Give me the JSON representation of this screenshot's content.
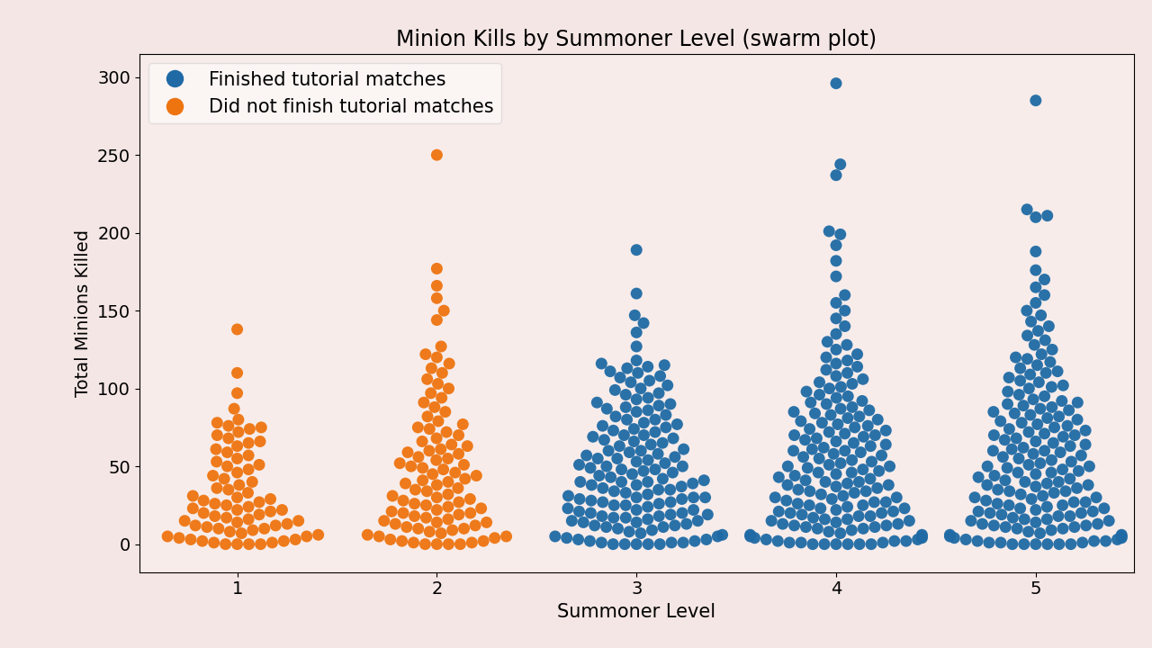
{
  "chart_data": {
    "type": "swarm",
    "title": "Minion Kills by Summoner Level (swarm plot)",
    "x_label": "Summoner Level",
    "y_label": "Total Minions Killed",
    "categories": [
      "1",
      "2",
      "3",
      "4",
      "5"
    ],
    "ylim": [
      -18,
      315
    ],
    "yticks": [
      0,
      50,
      100,
      150,
      200,
      250,
      300
    ],
    "legend": "upper left",
    "series": [
      {
        "name": "Finished tutorial matches",
        "color": "#1f6aa5",
        "values": [
          null,
          null,
          [
            0,
            0,
            0,
            0,
            0,
            1,
            1,
            1,
            2,
            2,
            3,
            3,
            4,
            5,
            5,
            6,
            7,
            8,
            9,
            10,
            11,
            11,
            12,
            12,
            13,
            14,
            14,
            15,
            15,
            16,
            17,
            17,
            18,
            18,
            19,
            19,
            20,
            20,
            21,
            22,
            22,
            23,
            24,
            25,
            25,
            26,
            27,
            27,
            28,
            29,
            29,
            30,
            30,
            30,
            31,
            32,
            33,
            34,
            35,
            35,
            36,
            37,
            38,
            38,
            39,
            40,
            40,
            40,
            41,
            42,
            43,
            44,
            45,
            46,
            47,
            48,
            48,
            49,
            50,
            50,
            51,
            52,
            53,
            54,
            55,
            55,
            56,
            57,
            58,
            59,
            60,
            60,
            61,
            63,
            64,
            65,
            66,
            67,
            68,
            69,
            70,
            70,
            72,
            73,
            74,
            75,
            76,
            77,
            78,
            80,
            80,
            82,
            83,
            85,
            86,
            87,
            88,
            89,
            90,
            91,
            93,
            94,
            96,
            97,
            99,
            100,
            102,
            104,
            105,
            107,
            108,
            110,
            111,
            113,
            114,
            115,
            116,
            118,
            127,
            136,
            142,
            147,
            161,
            189
          ],
          [
            0,
            0,
            0,
            0,
            0,
            0,
            1,
            1,
            1,
            2,
            2,
            2,
            3,
            3,
            4,
            4,
            5,
            5,
            6,
            6,
            7,
            8,
            9,
            10,
            10,
            11,
            11,
            12,
            12,
            13,
            13,
            14,
            15,
            15,
            16,
            16,
            17,
            18,
            18,
            19,
            20,
            20,
            21,
            21,
            22,
            23,
            23,
            24,
            25,
            25,
            26,
            27,
            27,
            28,
            29,
            30,
            30,
            31,
            32,
            33,
            34,
            34,
            35,
            36,
            37,
            38,
            38,
            39,
            40,
            40,
            41,
            42,
            43,
            44,
            45,
            46,
            46,
            47,
            48,
            49,
            50,
            50,
            51,
            52,
            53,
            54,
            55,
            56,
            57,
            58,
            59,
            60,
            60,
            61,
            62,
            63,
            64,
            65,
            66,
            67,
            68,
            69,
            70,
            70,
            71,
            72,
            73,
            74,
            75,
            76,
            77,
            78,
            79,
            80,
            81,
            82,
            83,
            84,
            85,
            86,
            87,
            88,
            90,
            91,
            92,
            94,
            95,
            96,
            98,
            100,
            101,
            103,
            104,
            106,
            108,
            110,
            112,
            114,
            116,
            118,
            120,
            122,
            125,
            128,
            130,
            135,
            140,
            145,
            150,
            155,
            160,
            172,
            182,
            192,
            199,
            201,
            237,
            244,
            296
          ],
          [
            0,
            0,
            0,
            0,
            0,
            0,
            1,
            1,
            1,
            2,
            2,
            2,
            3,
            3,
            4,
            4,
            5,
            5,
            6,
            6,
            7,
            8,
            9,
            10,
            10,
            11,
            11,
            12,
            12,
            13,
            13,
            14,
            15,
            15,
            16,
            16,
            17,
            18,
            18,
            19,
            20,
            20,
            21,
            21,
            22,
            23,
            23,
            24,
            25,
            25,
            26,
            27,
            27,
            28,
            29,
            30,
            30,
            31,
            32,
            33,
            34,
            34,
            35,
            36,
            37,
            38,
            38,
            39,
            40,
            40,
            41,
            42,
            43,
            44,
            45,
            46,
            46,
            47,
            48,
            49,
            50,
            50,
            51,
            52,
            53,
            54,
            55,
            56,
            57,
            58,
            59,
            60,
            60,
            61,
            62,
            63,
            64,
            65,
            66,
            67,
            68,
            69,
            70,
            70,
            71,
            72,
            73,
            74,
            75,
            76,
            77,
            78,
            79,
            80,
            81,
            82,
            83,
            84,
            85,
            86,
            87,
            88,
            89,
            90,
            91,
            92,
            93,
            95,
            96,
            98,
            100,
            101,
            102,
            104,
            105,
            107,
            109,
            110,
            111,
            113,
            115,
            117,
            119,
            120,
            122,
            125,
            128,
            131,
            134,
            137,
            140,
            143,
            147,
            150,
            155,
            160,
            165,
            170,
            176,
            188,
            210,
            211,
            215,
            285
          ]
        ]
      },
      {
        "name": "Did not finish tutorial matches",
        "color": "#ee7410",
        "values": [
          [
            0,
            0,
            0,
            0,
            1,
            1,
            2,
            2,
            3,
            3,
            4,
            5,
            5,
            6,
            7,
            8,
            9,
            10,
            10,
            11,
            12,
            12,
            13,
            14,
            15,
            15,
            16,
            17,
            18,
            19,
            20,
            21,
            22,
            22,
            23,
            24,
            25,
            26,
            27,
            28,
            29,
            30,
            31,
            33,
            35,
            36,
            38,
            40,
            42,
            44,
            46,
            48,
            50,
            51,
            53,
            55,
            57,
            59,
            61,
            63,
            65,
            66,
            68,
            70,
            72,
            74,
            75,
            76,
            78,
            80,
            87,
            97,
            110,
            138
          ],
          [
            0,
            0,
            0,
            0,
            1,
            1,
            2,
            2,
            3,
            4,
            5,
            5,
            6,
            7,
            8,
            9,
            10,
            10,
            11,
            12,
            13,
            14,
            14,
            15,
            16,
            17,
            18,
            19,
            20,
            20,
            21,
            22,
            23,
            24,
            25,
            26,
            27,
            28,
            29,
            30,
            31,
            32,
            34,
            35,
            36,
            38,
            39,
            40,
            41,
            42,
            44,
            45,
            46,
            48,
            49,
            50,
            51,
            52,
            54,
            55,
            56,
            58,
            59,
            60,
            61,
            63,
            64,
            66,
            68,
            70,
            72,
            74,
            75,
            77,
            79,
            82,
            85,
            88,
            91,
            94,
            97,
            100,
            103,
            106,
            110,
            113,
            116,
            120,
            122,
            127,
            144,
            150,
            158,
            166,
            177,
            250
          ],
          null,
          null,
          null
        ]
      }
    ]
  }
}
